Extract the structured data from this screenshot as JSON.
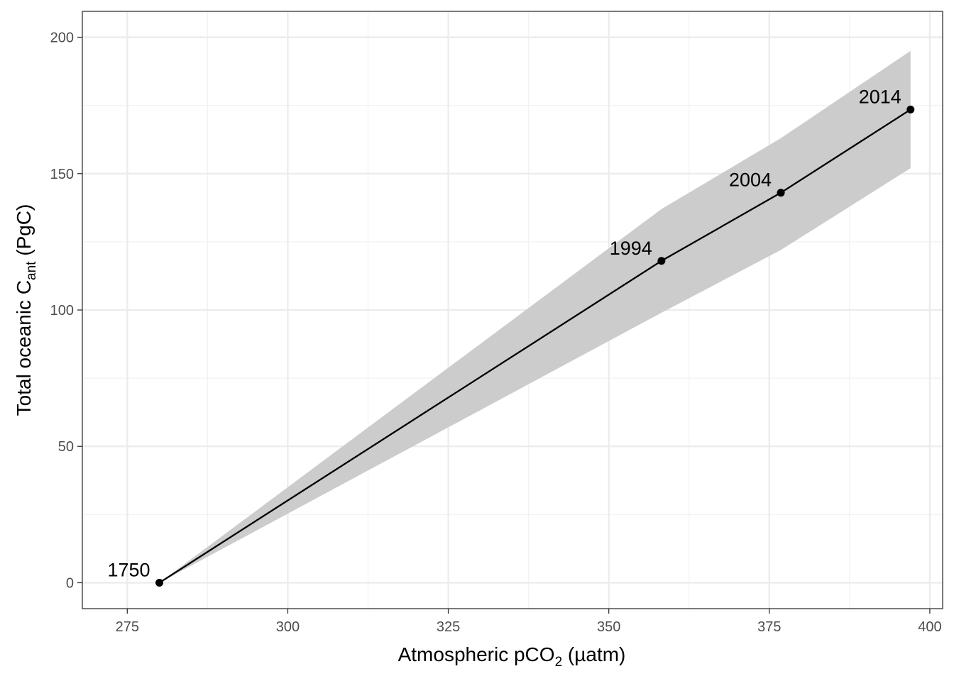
{
  "chart_data": {
    "type": "line",
    "title": "",
    "xlabel": {
      "main": "Atmospheric pCO",
      "sub": "2",
      "suffix": " (µatm)"
    },
    "ylabel": {
      "main": "Total oceanic C",
      "sub": "ant",
      "suffix": " (PgC)"
    },
    "xlim": [
      268,
      402
    ],
    "ylim": [
      -9.5,
      209.5
    ],
    "x_ticks": [
      275,
      300,
      325,
      350,
      375,
      400
    ],
    "y_ticks": [
      0,
      50,
      100,
      150,
      200
    ],
    "x_tick_labels": [
      "275",
      "300",
      "325",
      "350",
      "375",
      "400"
    ],
    "y_tick_labels": [
      "0",
      "50",
      "100",
      "150",
      "200"
    ],
    "grid": true,
    "series": [
      {
        "points": [
          {
            "x": 280.0,
            "y": 0.0,
            "label": "1750"
          },
          {
            "x": 358.2,
            "y": 118.0,
            "label": "1994"
          },
          {
            "x": 376.8,
            "y": 143.0,
            "label": "2004"
          },
          {
            "x": 397.0,
            "y": 173.5,
            "label": "2014"
          }
        ],
        "band_upper": [
          0.0,
          137.0,
          163.0,
          195.0
        ],
        "band_lower": [
          0.0,
          99.0,
          122.0,
          152.0
        ],
        "line_color": "#000000",
        "band_color": "#cccccc"
      }
    ]
  }
}
